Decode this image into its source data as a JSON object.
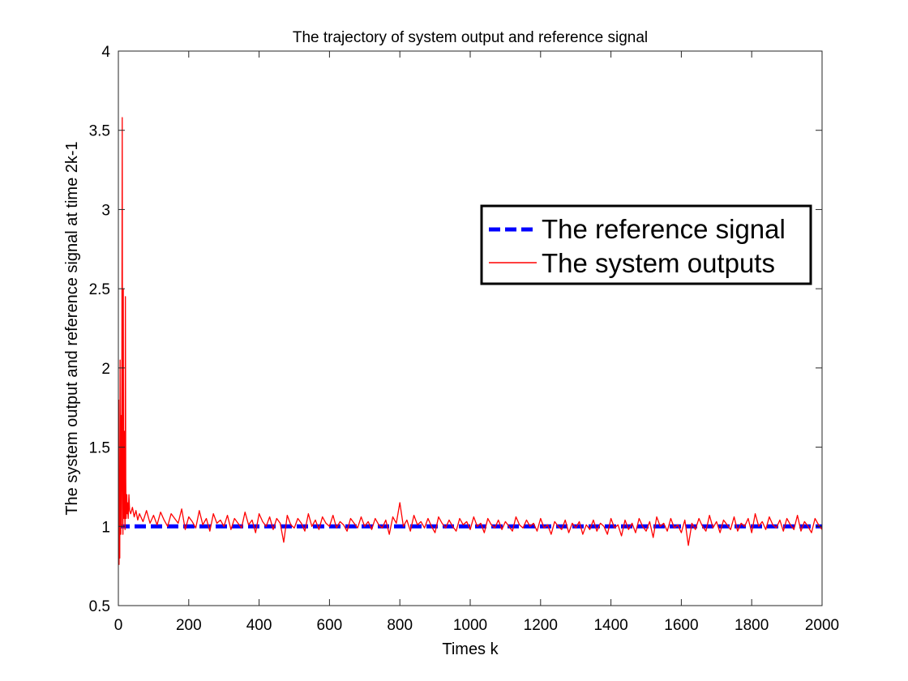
{
  "chart_data": {
    "type": "line",
    "title": "The trajectory of system output and reference signal",
    "xlabel": "Times k",
    "ylabel": "The system output and reference signal at time 2k-1",
    "xlim": [
      0,
      2000
    ],
    "ylim": [
      0.5,
      4
    ],
    "xticks": [
      0,
      200,
      400,
      600,
      800,
      1000,
      1200,
      1400,
      1600,
      1800,
      2000
    ],
    "yticks": [
      0.5,
      1,
      1.5,
      2,
      2.5,
      3,
      3.5,
      4
    ],
    "xtick_labels": [
      "0",
      "200",
      "400",
      "600",
      "800",
      "1000",
      "1200",
      "1400",
      "1600",
      "1800",
      "2000"
    ],
    "ytick_labels": [
      "0.5",
      "1",
      "1.5",
      "2",
      "2.5",
      "3",
      "3.5",
      "4"
    ],
    "grid": false,
    "legend_position": "upper-right",
    "series": [
      {
        "name": "The reference signal",
        "color": "#0000ff",
        "style": "dashed",
        "x": [
          0,
          2000
        ],
        "y": [
          1,
          1
        ]
      },
      {
        "name": "The system outputs",
        "color": "#ff0000",
        "style": "solid",
        "x": [
          1,
          2,
          3,
          4,
          5,
          6,
          7,
          8,
          9,
          10,
          11,
          12,
          13,
          14,
          15,
          16,
          17,
          18,
          19,
          20,
          21,
          22,
          23,
          24,
          25,
          26,
          28,
          30,
          32,
          35,
          40,
          45,
          50,
          55,
          60,
          70,
          80,
          90,
          100,
          110,
          120,
          130,
          140,
          150,
          160,
          170,
          180,
          190,
          200,
          210,
          220,
          230,
          240,
          250,
          260,
          270,
          280,
          290,
          300,
          310,
          320,
          330,
          340,
          350,
          360,
          370,
          380,
          390,
          400,
          410,
          420,
          430,
          440,
          450,
          460,
          470,
          480,
          490,
          500,
          510,
          520,
          530,
          540,
          550,
          560,
          570,
          580,
          590,
          600,
          610,
          620,
          630,
          640,
          650,
          660,
          670,
          680,
          690,
          700,
          710,
          720,
          730,
          740,
          750,
          760,
          770,
          780,
          790,
          800,
          810,
          820,
          830,
          840,
          850,
          860,
          870,
          880,
          890,
          900,
          910,
          920,
          930,
          940,
          950,
          960,
          970,
          980,
          990,
          1000,
          1010,
          1020,
          1030,
          1040,
          1050,
          1060,
          1070,
          1080,
          1090,
          1100,
          1110,
          1120,
          1130,
          1140,
          1150,
          1160,
          1170,
          1180,
          1190,
          1200,
          1210,
          1220,
          1230,
          1240,
          1250,
          1260,
          1270,
          1280,
          1290,
          1300,
          1310,
          1320,
          1330,
          1340,
          1350,
          1360,
          1370,
          1380,
          1390,
          1400,
          1410,
          1420,
          1430,
          1440,
          1450,
          1460,
          1470,
          1480,
          1490,
          1500,
          1510,
          1520,
          1530,
          1540,
          1550,
          1560,
          1570,
          1580,
          1590,
          1600,
          1610,
          1620,
          1630,
          1640,
          1650,
          1660,
          1670,
          1680,
          1690,
          1700,
          1710,
          1720,
          1730,
          1740,
          1750,
          1760,
          1770,
          1780,
          1790,
          1800,
          1810,
          1820,
          1830,
          1840,
          1850,
          1860,
          1870,
          1880,
          1890,
          1900,
          1910,
          1920,
          1930,
          1940,
          1950,
          1960,
          1970,
          1980,
          1990,
          2000
        ],
        "y": [
          1.8,
          0.76,
          1.25,
          0.8,
          2.05,
          1.1,
          0.95,
          1.7,
          1.0,
          2.1,
          3.58,
          1.3,
          0.95,
          2.5,
          1.15,
          1.05,
          1.6,
          1.1,
          0.98,
          2.45,
          1.3,
          1.05,
          1.12,
          1.2,
          1.08,
          1.15,
          1.05,
          1.2,
          1.1,
          1.08,
          1.12,
          1.06,
          1.1,
          1.04,
          1.08,
          1.03,
          1.1,
          1.02,
          1.07,
          1.01,
          1.09,
          1.04,
          1.0,
          1.08,
          1.05,
          1.02,
          1.11,
          0.98,
          1.06,
          1.03,
          0.99,
          1.1,
          1.01,
          1.05,
          0.97,
          1.08,
          1.02,
          1.04,
          1.0,
          1.07,
          0.98,
          1.05,
          1.02,
          0.99,
          1.09,
          1.01,
          1.04,
          0.96,
          1.08,
          1.03,
          1.0,
          1.06,
          0.98,
          1.05,
          1.02,
          0.9,
          1.07,
          1.01,
          0.99,
          1.05,
          1.02,
          0.97,
          1.08,
          1.0,
          1.04,
          0.98,
          1.06,
          1.02,
          1.0,
          1.07,
          0.99,
          1.03,
          1.01,
          0.97,
          1.05,
          1.02,
          0.99,
          1.06,
          1.0,
          1.03,
          0.98,
          1.05,
          1.01,
          0.99,
          1.04,
          0.95,
          1.06,
          1.02,
          1.15,
          1.0,
          1.04,
          0.97,
          1.07,
          1.01,
          1.03,
          0.99,
          1.05,
          1.0,
          0.96,
          1.06,
          1.02,
          0.99,
          1.04,
          1.0,
          0.97,
          1.05,
          1.01,
          1.03,
          0.98,
          1.06,
          1.0,
          1.02,
          0.96,
          1.05,
          1.01,
          0.99,
          1.04,
          0.98,
          1.03,
          1.0,
          0.97,
          1.06,
          1.01,
          0.99,
          1.04,
          1.0,
          1.02,
          0.97,
          1.05,
          0.99,
          1.01,
          0.95,
          1.03,
          1.0,
          0.98,
          1.04,
          0.96,
          1.02,
          0.99,
          1.03,
          0.95,
          1.01,
          0.98,
          1.04,
          0.97,
          1.02,
          1.0,
          0.95,
          1.05,
          0.99,
          1.01,
          0.94,
          1.04,
          0.98,
          1.02,
          0.96,
          1.05,
          1.0,
          0.97,
          1.03,
          0.93,
          1.06,
          1.0,
          1.02,
          0.97,
          1.05,
          0.99,
          1.01,
          0.96,
          1.04,
          0.88,
          1.02,
          0.98,
          1.05,
          1.0,
          0.97,
          1.07,
          0.99,
          1.03,
          0.96,
          1.04,
          1.01,
          0.98,
          1.06,
          0.97,
          1.02,
          1.0,
          1.05,
          0.96,
          1.08,
          1.0,
          1.03,
          0.98,
          1.06,
          1.01,
          0.99,
          1.04,
          0.97,
          1.05,
          1.01,
          0.98,
          1.07,
          0.97,
          1.03,
          1.0,
          0.96,
          1.05,
          1.01,
          0.98
        ]
      }
    ]
  }
}
